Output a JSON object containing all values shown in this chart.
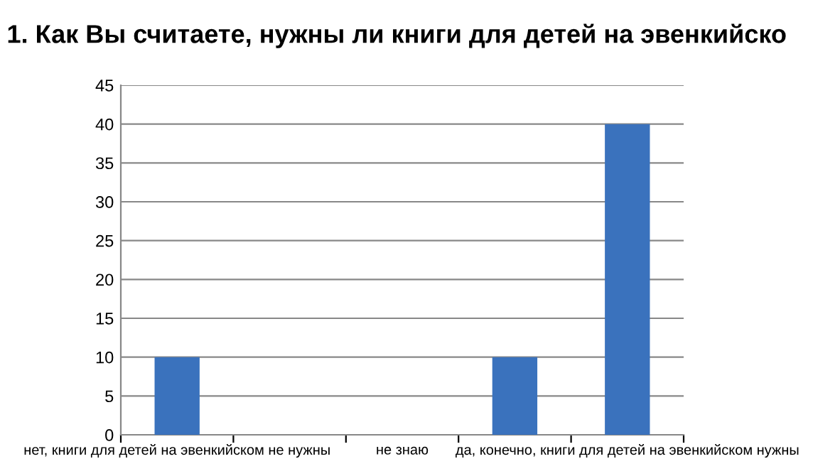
{
  "chart_data": {
    "type": "bar",
    "title": "1. Как Вы считаете, нужны ли книги для детей на эвенкийско",
    "categories": [
      "нет, книги для детей на эвенкийском не нужны",
      null,
      "не знаю",
      null,
      "да, конечно, книги для детей на эвенкийском нужны"
    ],
    "values": [
      10,
      0,
      0,
      10,
      40
    ],
    "color": "#3a72bd",
    "ylim": [
      0,
      45
    ],
    "yticks": [
      0,
      5,
      10,
      15,
      20,
      25,
      30,
      35,
      40,
      45
    ],
    "grid": "y"
  }
}
